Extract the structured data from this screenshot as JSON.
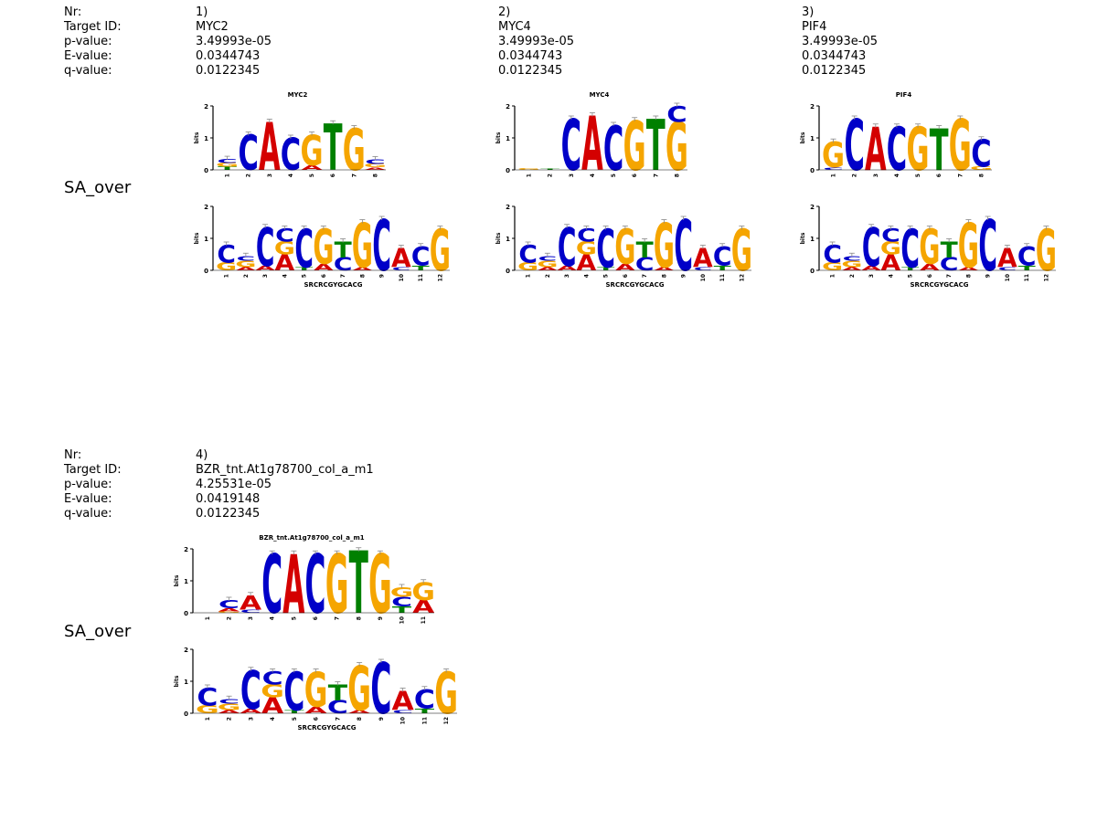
{
  "field_labels": [
    "Nr:",
    "Target ID:",
    "p-value:",
    "E-value:",
    "q-value:"
  ],
  "sample_label": "SA_over",
  "colors": {
    "A": "#d40000",
    "C": "#0000c8",
    "G": "#f5a500",
    "T": "#008000"
  },
  "axis_text": {
    "ylabel": "bits",
    "ticks": [
      "0",
      "1",
      "2"
    ]
  },
  "query_name": "SRCRCGYGCACG",
  "matches": [
    {
      "nr": "1)",
      "target_id": "MYC2",
      "p_value": "3.49993e-05",
      "e_value": "0.0344743",
      "q_value": "0.0122345",
      "logo_title": "MYC2",
      "target_positions": [
        "1",
        "2",
        "3",
        "4",
        "5",
        "6",
        "7",
        "8"
      ],
      "target_stack": [
        [
          [
            "T",
            0.1
          ],
          [
            "G",
            0.12
          ],
          [
            "C",
            0.12
          ]
        ],
        [
          [
            "C",
            1.1
          ]
        ],
        [
          [
            "A",
            1.5
          ]
        ],
        [
          [
            "C",
            1.0
          ]
        ],
        [
          [
            "A",
            0.15
          ],
          [
            "G",
            0.95
          ]
        ],
        [
          [
            "T",
            1.45
          ]
        ],
        [
          [
            "G",
            1.3
          ]
        ],
        [
          [
            "A",
            0.08
          ],
          [
            "G",
            0.1
          ],
          [
            "C",
            0.15
          ]
        ]
      ]
    },
    {
      "nr": "2)",
      "target_id": "MYC4",
      "p_value": "3.49993e-05",
      "e_value": "0.0344743",
      "q_value": "0.0122345",
      "logo_title": "MYC4",
      "target_positions": [
        "1",
        "2",
        "3",
        "4",
        "5",
        "6",
        "7",
        "8"
      ],
      "target_stack": [
        [
          [
            "G",
            0.05
          ]
        ],
        [
          [
            "T",
            0.04
          ]
        ],
        [
          [
            "C",
            1.6
          ]
        ],
        [
          [
            "A",
            1.7
          ]
        ],
        [
          [
            "C",
            1.4
          ]
        ],
        [
          [
            "G",
            1.55
          ]
        ],
        [
          [
            "T",
            1.6
          ]
        ],
        [
          [
            "G",
            1.5
          ],
          [
            "C",
            0.5
          ]
        ]
      ]
    },
    {
      "nr": "3)",
      "target_id": "PIF4",
      "p_value": "3.49993e-05",
      "e_value": "0.0344743",
      "q_value": "0.0122345",
      "logo_title": "PIF4",
      "target_positions": [
        "1",
        "2",
        "3",
        "4",
        "5",
        "6",
        "7",
        "8"
      ],
      "target_stack": [
        [
          [
            "C",
            0.08
          ],
          [
            "G",
            0.8
          ]
        ],
        [
          [
            "C",
            1.6
          ]
        ],
        [
          [
            "A",
            1.35
          ]
        ],
        [
          [
            "C",
            1.35
          ]
        ],
        [
          [
            "G",
            1.35
          ]
        ],
        [
          [
            "T",
            1.3
          ]
        ],
        [
          [
            "G",
            1.6
          ]
        ],
        [
          [
            "G",
            0.1
          ],
          [
            "C",
            0.85
          ]
        ]
      ]
    },
    {
      "nr": "4)",
      "target_id": "BZR_tnt.At1g78700_col_a_m1",
      "p_value": "4.25531e-05",
      "e_value": "0.0419148",
      "q_value": "0.0122345",
      "logo_title": "BZR_tnt.At1g78700_col_a_m1",
      "target_positions": [
        "1",
        "2",
        "3",
        "4",
        "5",
        "6",
        "7",
        "8",
        "9",
        "10",
        "11"
      ],
      "target_stack": [
        [],
        [
          [
            "G",
            0.05
          ],
          [
            "A",
            0.1
          ],
          [
            "C",
            0.25
          ]
        ],
        [
          [
            "C",
            0.1
          ],
          [
            "A",
            0.45
          ]
        ],
        [
          [
            "C",
            1.85
          ]
        ],
        [
          [
            "A",
            1.85
          ]
        ],
        [
          [
            "C",
            1.85
          ]
        ],
        [
          [
            "G",
            1.85
          ]
        ],
        [
          [
            "T",
            1.95
          ]
        ],
        [
          [
            "G",
            1.85
          ]
        ],
        [
          [
            "T",
            0.2
          ],
          [
            "C",
            0.3
          ],
          [
            "G",
            0.3
          ]
        ],
        [
          [
            "A",
            0.4
          ],
          [
            "G",
            0.55
          ]
        ]
      ]
    }
  ],
  "query_positions": [
    "1",
    "2",
    "3",
    "4",
    "5",
    "6",
    "7",
    "8",
    "9",
    "10",
    "11",
    "12"
  ],
  "query_stack": [
    [
      [
        "G",
        0.25
      ],
      [
        "C",
        0.55
      ]
    ],
    [
      [
        "A",
        0.1
      ],
      [
        "G",
        0.2
      ],
      [
        "C",
        0.15
      ]
    ],
    [
      [
        "A",
        0.15
      ],
      [
        "C",
        1.2
      ]
    ],
    [
      [
        "A",
        0.5
      ],
      [
        "G",
        0.4
      ],
      [
        "C",
        0.4
      ]
    ],
    [
      [
        "T",
        0.1
      ],
      [
        "C",
        1.2
      ]
    ],
    [
      [
        "A",
        0.2
      ],
      [
        "G",
        1.1
      ]
    ],
    [
      [
        "C",
        0.4
      ],
      [
        "T",
        0.5
      ]
    ],
    [
      [
        "A",
        0.1
      ],
      [
        "G",
        1.4
      ]
    ],
    [
      [
        "C",
        1.6
      ]
    ],
    [
      [
        "C",
        0.1
      ],
      [
        "A",
        0.6
      ]
    ],
    [
      [
        "T",
        0.15
      ],
      [
        "C",
        0.6
      ]
    ],
    [
      [
        "G",
        1.3
      ]
    ]
  ]
}
